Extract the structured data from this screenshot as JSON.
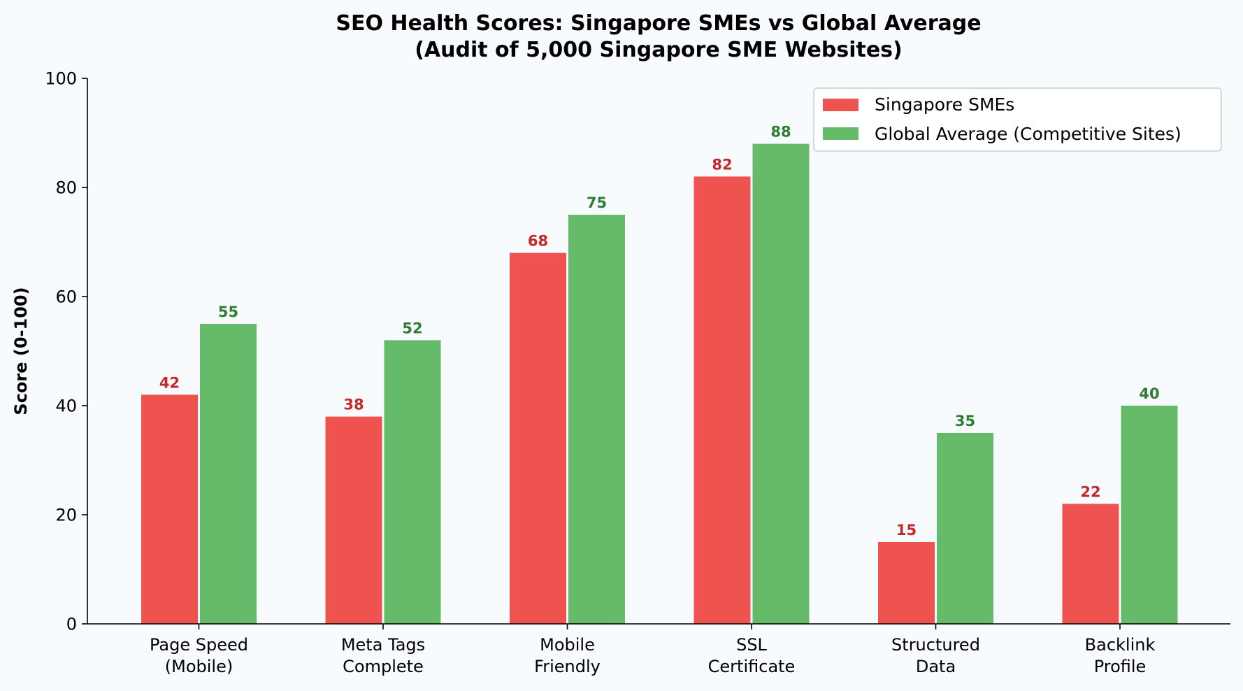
{
  "chart_data": {
    "type": "bar",
    "title_lines": [
      "SEO Health Scores: Singapore SMEs vs Global Average",
      "(Audit of 5,000 Singapore SME Websites)"
    ],
    "ylabel": "Score (0-100)",
    "ylim": [
      0,
      100
    ],
    "yticks": [
      0,
      20,
      40,
      60,
      80,
      100
    ],
    "categories": [
      [
        "Page Speed",
        "(Mobile)"
      ],
      [
        "Meta Tags",
        "Complete"
      ],
      [
        "Mobile",
        "Friendly"
      ],
      [
        "SSL",
        "Certificate"
      ],
      [
        "Structured",
        "Data"
      ],
      [
        "Backlink",
        "Profile"
      ]
    ],
    "series": [
      {
        "name": "Singapore SMEs",
        "values": [
          42,
          38,
          68,
          82,
          15,
          22
        ],
        "color": "#ef5350",
        "label_color": "#c62828"
      },
      {
        "name": "Global Average (Competitive Sites)",
        "values": [
          55,
          52,
          75,
          88,
          35,
          40
        ],
        "color": "#66bb6a",
        "label_color": "#2e7d32"
      }
    ],
    "legend_position": "top-right",
    "grid": false
  }
}
